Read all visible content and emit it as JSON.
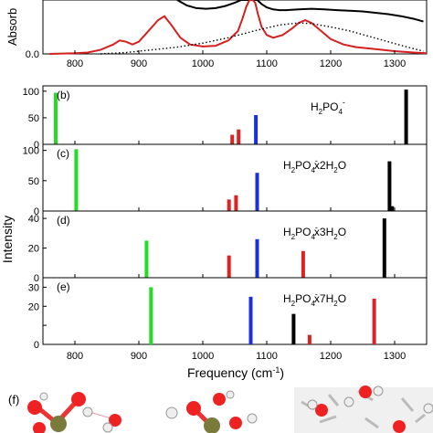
{
  "figure": {
    "x_axis_title": "Frequency (cm",
    "x_axis_title_sup": "-1",
    "x_axis_title_end": ")",
    "shared_y_title": "Intensity",
    "top_y_title": "Absorb",
    "panel_f_label": "(f)"
  },
  "chart_data": [
    {
      "type": "line",
      "panel": "a",
      "xlim": [
        750,
        1350
      ],
      "ylim": [
        0,
        0.4
      ],
      "y_ticks": [
        0.0
      ],
      "y_tick_labels": [
        "0.0"
      ],
      "x_ticks": [
        800,
        900,
        1000,
        1100,
        1200,
        1300
      ],
      "x_tick_labels": [
        "800",
        "900",
        "1000",
        "1100",
        "1200",
        "1300"
      ],
      "series": [
        {
          "color": "#000000",
          "style": "solid",
          "x": [
            960,
            975,
            990,
            1005,
            1020,
            1035,
            1050,
            1060,
            1068,
            1075,
            1080,
            1085,
            1092,
            1100,
            1110,
            1120,
            1130,
            1150,
            1170,
            1190,
            1210,
            1230,
            1250,
            1270,
            1290,
            1310,
            1330,
            1345
          ],
          "y": [
            0.4,
            0.36,
            0.34,
            0.335,
            0.34,
            0.355,
            0.38,
            0.4,
            0.4,
            0.4,
            0.4,
            0.4,
            0.37,
            0.345,
            0.33,
            0.325,
            0.325,
            0.33,
            0.335,
            0.33,
            0.325,
            0.32,
            0.315,
            0.305,
            0.295,
            0.28,
            0.26,
            0.24
          ]
        },
        {
          "color": "#d62020",
          "style": "solid",
          "x": [
            760,
            800,
            820,
            840,
            860,
            870,
            880,
            890,
            900,
            915,
            930,
            940,
            950,
            965,
            980,
            1000,
            1020,
            1040,
            1055,
            1062,
            1068,
            1073,
            1078,
            1082,
            1086,
            1092,
            1100,
            1110,
            1125,
            1140,
            1150,
            1160,
            1170,
            1185,
            1200,
            1220,
            1240,
            1270,
            1300,
            1330,
            1350
          ],
          "y": [
            0.0,
            0.005,
            0.01,
            0.03,
            0.07,
            0.1,
            0.09,
            0.07,
            0.09,
            0.17,
            0.25,
            0.28,
            0.22,
            0.12,
            0.07,
            0.055,
            0.06,
            0.1,
            0.17,
            0.26,
            0.35,
            0.4,
            0.4,
            0.38,
            0.3,
            0.2,
            0.14,
            0.12,
            0.14,
            0.19,
            0.23,
            0.25,
            0.23,
            0.17,
            0.11,
            0.07,
            0.05,
            0.035,
            0.02,
            0.01,
            0.005
          ]
        },
        {
          "color": "#000000",
          "style": "dotted",
          "x": [
            840,
            880,
            920,
            960,
            1000,
            1040,
            1080,
            1120,
            1150,
            1170,
            1200,
            1230,
            1260,
            1290,
            1320,
            1345
          ],
          "y": [
            0.0,
            0.01,
            0.03,
            0.05,
            0.08,
            0.12,
            0.17,
            0.215,
            0.23,
            0.225,
            0.2,
            0.17,
            0.13,
            0.09,
            0.05,
            0.02
          ]
        }
      ]
    },
    {
      "type": "bar",
      "panel": "b",
      "label": "(b)",
      "formula": {
        "base": "H",
        "sub1": "2",
        "mid": "PO",
        "sub2": "4",
        "sup": "-",
        "suffix": ""
      },
      "xlim": [
        750,
        1350
      ],
      "ylim": [
        0,
        110
      ],
      "y_ticks": [
        0,
        50,
        100
      ],
      "y_tick_labels": [
        "0",
        "50",
        "100"
      ],
      "bars": [
        {
          "x": 770,
          "y": 97,
          "color": "#22dd22"
        },
        {
          "x": 1046,
          "y": 18,
          "color": "#dd2222"
        },
        {
          "x": 1056,
          "y": 28,
          "color": "#dd2222"
        },
        {
          "x": 1083,
          "y": 55,
          "color": "#1a30dd"
        },
        {
          "x": 1318,
          "y": 103,
          "color": "#000000"
        }
      ]
    },
    {
      "type": "bar",
      "panel": "c",
      "label": "(c)",
      "formula": {
        "base": "H",
        "sub1": "2",
        "mid": "PO",
        "sub2": "4",
        "sup": "-",
        "suffix": "x2H",
        "suffix_sub": "2",
        "suffix_end": "O"
      },
      "xlim": [
        750,
        1350
      ],
      "ylim": [
        0,
        110
      ],
      "y_ticks": [
        0,
        50,
        100
      ],
      "y_tick_labels": [
        "0",
        "50",
        "100"
      ],
      "bars": [
        {
          "x": 802,
          "y": 102,
          "color": "#22dd22"
        },
        {
          "x": 1041,
          "y": 19,
          "color": "#dd2222"
        },
        {
          "x": 1052,
          "y": 26,
          "color": "#dd2222"
        },
        {
          "x": 1085,
          "y": 63,
          "color": "#1a30dd"
        },
        {
          "x": 1292,
          "y": 82,
          "color": "#000000"
        },
        {
          "x": 1296,
          "y": 8,
          "color": "#000000"
        }
      ]
    },
    {
      "type": "bar",
      "panel": "d",
      "label": "(d)",
      "formula": {
        "base": "H",
        "sub1": "2",
        "mid": "PO",
        "sub2": "4",
        "sup": "-",
        "suffix": "x3H",
        "suffix_sub": "2",
        "suffix_end": "O"
      },
      "xlim": [
        750,
        1350
      ],
      "ylim": [
        0,
        45
      ],
      "y_ticks": [
        0,
        20,
        40
      ],
      "y_tick_labels": [
        "0",
        "20",
        "40"
      ],
      "bars": [
        {
          "x": 912,
          "y": 25,
          "color": "#22dd22"
        },
        {
          "x": 1041,
          "y": 15,
          "color": "#dd2222"
        },
        {
          "x": 1157,
          "y": 18,
          "color": "#dd2222"
        },
        {
          "x": 1085,
          "y": 26,
          "color": "#1a30dd"
        },
        {
          "x": 1284,
          "y": 40,
          "color": "#000000"
        }
      ]
    },
    {
      "type": "bar",
      "panel": "e",
      "label": "(e)",
      "formula": {
        "base": "H",
        "sub1": "2",
        "mid": "PO",
        "sub2": "4",
        "sup": "-",
        "suffix": "x7H",
        "suffix_sub": "2",
        "suffix_end": "O"
      },
      "xlim": [
        750,
        1350
      ],
      "ylim": [
        0,
        35
      ],
      "y_ticks": [
        0,
        10,
        20,
        30
      ],
      "y_tick_labels": [
        "0",
        "",
        "20",
        "30"
      ],
      "bars": [
        {
          "x": 919,
          "y": 30,
          "color": "#22dd22"
        },
        {
          "x": 1075,
          "y": 25,
          "color": "#1a30dd"
        },
        {
          "x": 1142,
          "y": 16,
          "color": "#000000"
        },
        {
          "x": 1167,
          "y": 5,
          "color": "#dd2222"
        },
        {
          "x": 1268,
          "y": 24,
          "color": "#dd2222"
        }
      ],
      "x_ticks": [
        800,
        900,
        1000,
        1100,
        1200,
        1300
      ],
      "x_tick_labels": [
        "800",
        "900",
        "1000",
        "1100",
        "1200",
        "1300"
      ]
    }
  ]
}
